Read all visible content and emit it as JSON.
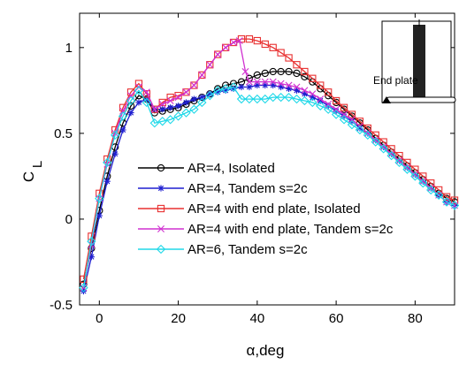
{
  "chart_data": {
    "type": "line",
    "xlabel": "α,deg",
    "ylabel_main": "C",
    "ylabel_sub": "L",
    "xlim": [
      -5,
      90
    ],
    "ylim": [
      -0.5,
      1.2
    ],
    "xticks": [
      0,
      20,
      40,
      60,
      80
    ],
    "yticks": [
      -0.5,
      0,
      0.5,
      1
    ],
    "xtick_labels": [
      "0",
      "20",
      "40",
      "60",
      "80"
    ],
    "ytick_labels": [
      "-0.5",
      "0",
      "0.5",
      "1"
    ],
    "grid": false,
    "legend_position": "bottom-center",
    "inset_label": "End plate",
    "series": [
      {
        "name": "AR=4, Isolated",
        "color": "#000000",
        "marker": "circle",
        "x": [
          -4,
          -2,
          0,
          2,
          4,
          6,
          8,
          10,
          12,
          14,
          16,
          18,
          20,
          22,
          24,
          26,
          28,
          30,
          32,
          34,
          36,
          38,
          40,
          42,
          44,
          46,
          48,
          50,
          52,
          54,
          56,
          58,
          60,
          62,
          64,
          66,
          68,
          70,
          72,
          74,
          76,
          78,
          80,
          82,
          84,
          86,
          88,
          90
        ],
        "y": [
          -0.38,
          -0.17,
          0.05,
          0.25,
          0.42,
          0.56,
          0.66,
          0.72,
          0.7,
          0.62,
          0.63,
          0.64,
          0.65,
          0.67,
          0.69,
          0.71,
          0.73,
          0.76,
          0.78,
          0.79,
          0.8,
          0.82,
          0.84,
          0.85,
          0.86,
          0.86,
          0.86,
          0.85,
          0.83,
          0.8,
          0.76,
          0.72,
          0.68,
          0.64,
          0.6,
          0.56,
          0.52,
          0.47,
          0.43,
          0.39,
          0.35,
          0.31,
          0.27,
          0.23,
          0.19,
          0.15,
          0.12,
          0.1
        ]
      },
      {
        "name": "AR=4, Tandem s=2c",
        "color": "#1f1fd0",
        "marker": "asterisk",
        "x": [
          -4,
          -2,
          0,
          2,
          4,
          6,
          8,
          10,
          12,
          14,
          16,
          18,
          20,
          22,
          24,
          26,
          28,
          30,
          32,
          34,
          36,
          38,
          40,
          42,
          44,
          46,
          48,
          50,
          52,
          54,
          56,
          58,
          60,
          62,
          64,
          66,
          68,
          70,
          72,
          74,
          76,
          78,
          80,
          82,
          84,
          86,
          88,
          90
        ],
        "y": [
          -0.42,
          -0.22,
          0.02,
          0.22,
          0.38,
          0.52,
          0.62,
          0.68,
          0.7,
          0.64,
          0.64,
          0.65,
          0.66,
          0.68,
          0.7,
          0.71,
          0.73,
          0.74,
          0.75,
          0.76,
          0.77,
          0.77,
          0.78,
          0.78,
          0.78,
          0.77,
          0.76,
          0.75,
          0.73,
          0.71,
          0.69,
          0.66,
          0.63,
          0.6,
          0.57,
          0.53,
          0.5,
          0.46,
          0.42,
          0.38,
          0.34,
          0.3,
          0.26,
          0.22,
          0.18,
          0.14,
          0.1,
          0.08
        ]
      },
      {
        "name": "AR=4 with end plate, Isolated",
        "color": "#e83030",
        "marker": "square",
        "x": [
          -4,
          -2,
          0,
          2,
          4,
          6,
          8,
          10,
          12,
          14,
          16,
          18,
          20,
          22,
          24,
          26,
          28,
          30,
          32,
          34,
          36,
          38,
          40,
          42,
          44,
          46,
          48,
          50,
          52,
          54,
          56,
          58,
          60,
          62,
          64,
          66,
          68,
          70,
          72,
          74,
          76,
          78,
          80,
          82,
          84,
          86,
          88,
          90
        ],
        "y": [
          -0.35,
          -0.1,
          0.15,
          0.35,
          0.52,
          0.65,
          0.74,
          0.79,
          0.73,
          0.64,
          0.68,
          0.71,
          0.72,
          0.74,
          0.78,
          0.84,
          0.9,
          0.96,
          1.0,
          1.03,
          1.05,
          1.05,
          1.04,
          1.02,
          1.0,
          0.97,
          0.94,
          0.9,
          0.86,
          0.82,
          0.78,
          0.74,
          0.69,
          0.65,
          0.61,
          0.57,
          0.53,
          0.49,
          0.45,
          0.41,
          0.37,
          0.33,
          0.29,
          0.25,
          0.21,
          0.17,
          0.13,
          0.11
        ]
      },
      {
        "name": "AR=4 with end plate, Tandem s=2c",
        "color": "#d030d0",
        "marker": "x",
        "x": [
          -4,
          -2,
          0,
          2,
          4,
          6,
          8,
          10,
          12,
          14,
          16,
          18,
          20,
          22,
          24,
          26,
          28,
          30,
          32,
          34,
          35.5,
          37,
          38,
          40,
          42,
          44,
          46,
          48,
          50,
          52,
          54,
          56,
          58,
          60,
          62,
          64,
          66,
          68,
          70,
          72,
          74,
          76,
          78,
          80,
          82,
          84,
          86,
          88,
          90
        ],
        "y": [
          -0.4,
          -0.15,
          0.12,
          0.32,
          0.5,
          0.63,
          0.72,
          0.77,
          0.74,
          0.64,
          0.67,
          0.69,
          0.71,
          0.74,
          0.78,
          0.84,
          0.9,
          0.96,
          1.0,
          1.03,
          1.04,
          0.86,
          0.8,
          0.8,
          0.8,
          0.8,
          0.79,
          0.78,
          0.77,
          0.75,
          0.73,
          0.7,
          0.67,
          0.64,
          0.61,
          0.58,
          0.54,
          0.5,
          0.46,
          0.42,
          0.38,
          0.34,
          0.3,
          0.26,
          0.22,
          0.18,
          0.14,
          0.1,
          0.08
        ]
      },
      {
        "name": "AR=6, Tandem s=2c",
        "color": "#20d8e8",
        "marker": "diamond",
        "x": [
          -4,
          -2,
          0,
          2,
          4,
          6,
          8,
          10,
          12,
          14,
          16,
          18,
          20,
          22,
          24,
          26,
          28,
          30,
          32,
          34,
          36,
          38,
          40,
          42,
          44,
          46,
          48,
          50,
          52,
          54,
          56,
          58,
          60,
          62,
          64,
          66,
          68,
          70,
          72,
          74,
          76,
          78,
          80,
          82,
          84,
          86,
          88,
          90
        ],
        "y": [
          -0.4,
          -0.13,
          0.12,
          0.33,
          0.49,
          0.6,
          0.69,
          0.75,
          0.68,
          0.56,
          0.57,
          0.58,
          0.6,
          0.62,
          0.64,
          0.68,
          0.72,
          0.75,
          0.76,
          0.77,
          0.7,
          0.7,
          0.7,
          0.7,
          0.71,
          0.71,
          0.71,
          0.7,
          0.69,
          0.68,
          0.66,
          0.64,
          0.61,
          0.58,
          0.55,
          0.52,
          0.49,
          0.45,
          0.41,
          0.37,
          0.33,
          0.29,
          0.25,
          0.21,
          0.17,
          0.14,
          0.1,
          0.08
        ]
      }
    ]
  }
}
